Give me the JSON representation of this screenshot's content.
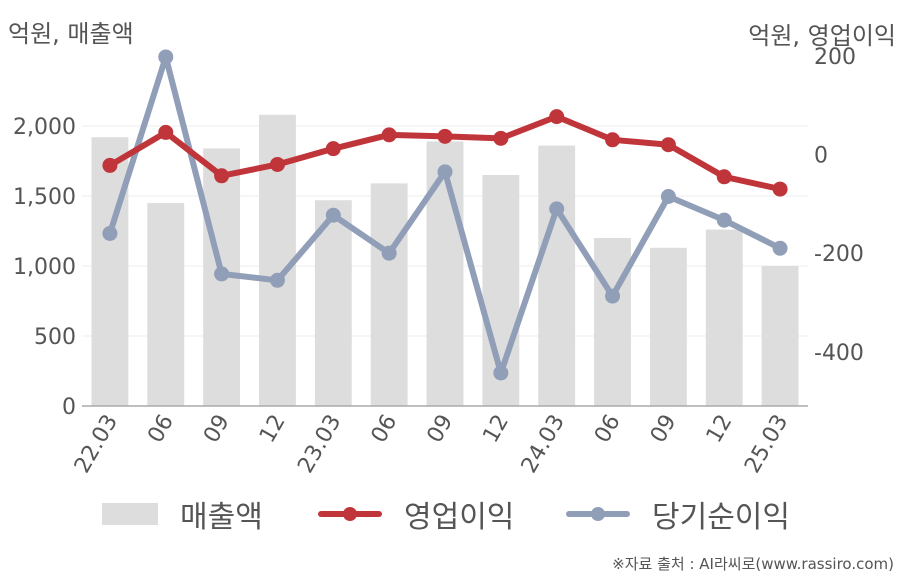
{
  "left_axis_title": "억원, 매출액",
  "right_axis_title": "억원, 영업이익",
  "source": "※자료 출처 : AI라씨로(www.rassiro.com)",
  "colors": {
    "revenue": "#dddddd",
    "operating_profit": "#c0353a",
    "net_income": "#909eb8",
    "grid": "#ececec",
    "axis": "#aaaaaa"
  },
  "legend": [
    {
      "label": "매출액",
      "kind": "bar",
      "color": "#dddddd"
    },
    {
      "label": "영업이익",
      "kind": "line",
      "color": "#c0353a"
    },
    {
      "label": "당기순이익",
      "kind": "line",
      "color": "#909eb8"
    }
  ],
  "chart_data": {
    "type": "bar",
    "categories": [
      "22.03",
      "06",
      "09",
      "12",
      "23.03",
      "06",
      "09",
      "12",
      "24.03",
      "06",
      "09",
      "12",
      "25.03"
    ],
    "y_left": {
      "ticks": [
        0,
        500,
        1000,
        1500,
        2000
      ],
      "tick_labels": [
        "0",
        "500",
        "1,000",
        "1,500",
        "2,000"
      ],
      "range": [
        0,
        2500
      ]
    },
    "y_right": {
      "ticks": [
        -400,
        -200,
        0,
        200
      ],
      "tick_labels": [
        "-400",
        "-200",
        "0",
        "200"
      ],
      "range": [
        -510,
        200
      ]
    },
    "grid": true,
    "legend_position": "bottom",
    "series": [
      {
        "name": "매출액",
        "type": "bar",
        "axis": "left",
        "values": [
          1920,
          1450,
          1840,
          2080,
          1470,
          1590,
          1890,
          1650,
          1860,
          1200,
          1130,
          1260,
          1000
        ]
      },
      {
        "name": "영업이익",
        "type": "line",
        "axis": "right",
        "values": [
          -22,
          45,
          -43,
          -20,
          12,
          40,
          37,
          33,
          77,
          30,
          20,
          -45,
          -70
        ]
      },
      {
        "name": "당기순이익",
        "type": "line",
        "axis": "right",
        "values": [
          -160,
          198,
          -242,
          -255,
          -123,
          -200,
          -35,
          -443,
          -110,
          -287,
          -85,
          -133,
          -190
        ]
      }
    ]
  }
}
